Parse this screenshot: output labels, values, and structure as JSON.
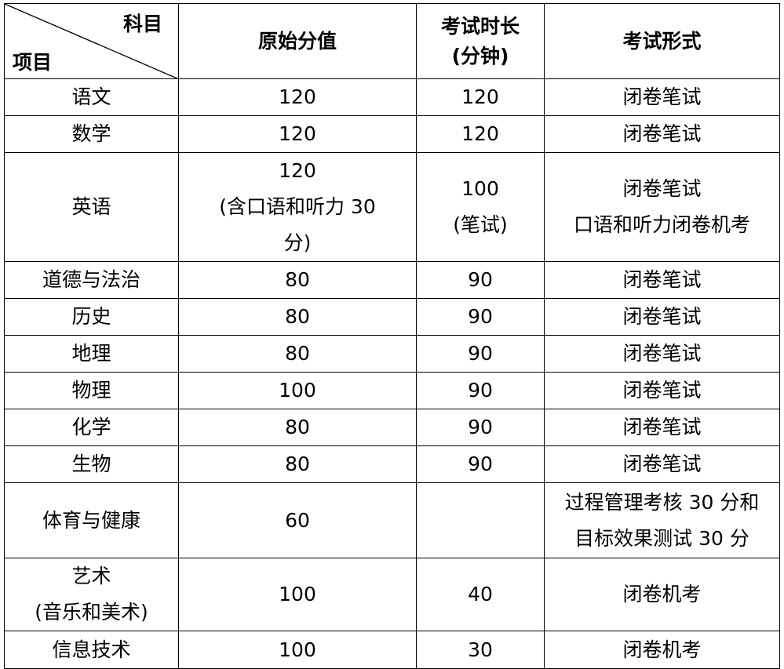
{
  "header": {
    "corner_top": "科目",
    "corner_bottom": "项目",
    "columns": [
      "原始分值",
      "考试时长\n(分钟)",
      "考试形式"
    ],
    "duration_line1": "考试时长",
    "duration_line2": "(分钟)"
  },
  "rows": [
    {
      "subject": "语文",
      "score": "120",
      "duration": "120",
      "form": "闭卷笔试"
    },
    {
      "subject": "数学",
      "score": "120",
      "duration": "120",
      "form": "闭卷笔试"
    },
    {
      "subject": "英语",
      "score": "120\n(含口语和听力 30\n分)",
      "duration": "100\n(笔试)",
      "form": "闭卷笔试\n口语和听力闭卷机考"
    },
    {
      "subject": "道德与法治",
      "score": "80",
      "duration": "90",
      "form": "闭卷笔试"
    },
    {
      "subject": "历史",
      "score": "80",
      "duration": "90",
      "form": "闭卷笔试"
    },
    {
      "subject": "地理",
      "score": "80",
      "duration": "90",
      "form": "闭卷笔试"
    },
    {
      "subject": "物理",
      "score": "100",
      "duration": "90",
      "form": "闭卷笔试"
    },
    {
      "subject": "化学",
      "score": "80",
      "duration": "90",
      "form": "闭卷笔试"
    },
    {
      "subject": "生物",
      "score": "80",
      "duration": "90",
      "form": "闭卷笔试"
    },
    {
      "subject": "体育与健康",
      "score": "60",
      "duration": "",
      "form": "过程管理考核 30 分和\n目标效果测试 30 分"
    },
    {
      "subject": "艺术\n(音乐和美术)",
      "score": "100",
      "duration": "40",
      "form": "闭卷机考"
    },
    {
      "subject": "信息技术",
      "score": "100",
      "duration": "30",
      "form": "闭卷机考"
    }
  ]
}
